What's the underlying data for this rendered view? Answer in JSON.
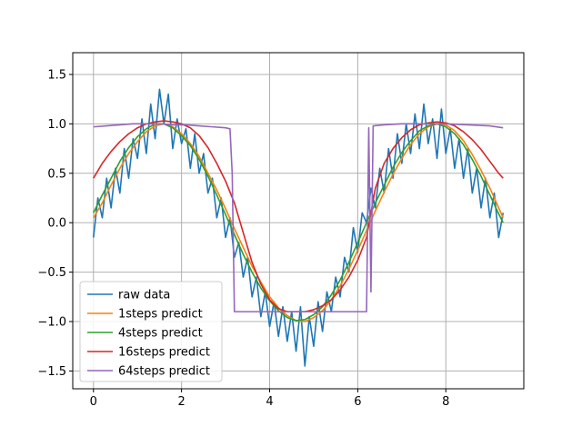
{
  "chart_data": {
    "type": "line",
    "title": "",
    "xlabel": "",
    "ylabel": "",
    "xlim": [
      -0.47,
      9.77
    ],
    "ylim": [
      -1.68,
      1.72
    ],
    "xticks": [
      0,
      2,
      4,
      6,
      8
    ],
    "yticks": [
      -1.5,
      -1.0,
      -0.5,
      0.0,
      0.5,
      1.0,
      1.5
    ],
    "xtick_labels": [
      "0",
      "2",
      "4",
      "6",
      "8"
    ],
    "ytick_labels": [
      "−1.5",
      "−1.0",
      "−0.5",
      "0.0",
      "0.5",
      "1.0",
      "1.5"
    ],
    "grid": true,
    "legend_position": "lower-left",
    "series": [
      {
        "name": "raw data",
        "color": "#1f77b4",
        "x": [
          0.0,
          0.1,
          0.2,
          0.3,
          0.4,
          0.5,
          0.6,
          0.7,
          0.8,
          0.9,
          1.0,
          1.1,
          1.2,
          1.3,
          1.4,
          1.5,
          1.6,
          1.7,
          1.8,
          1.9,
          2.0,
          2.1,
          2.2,
          2.3,
          2.4,
          2.5,
          2.6,
          2.7,
          2.8,
          2.9,
          3.0,
          3.1,
          3.2,
          3.3,
          3.4,
          3.5,
          3.6,
          3.7,
          3.8,
          3.9,
          4.0,
          4.1,
          4.2,
          4.3,
          4.4,
          4.5,
          4.6,
          4.7,
          4.8,
          4.9,
          5.0,
          5.1,
          5.2,
          5.3,
          5.4,
          5.5,
          5.6,
          5.7,
          5.8,
          5.9,
          6.0,
          6.1,
          6.2,
          6.3,
          6.4,
          6.5,
          6.6,
          6.7,
          6.8,
          6.9,
          7.0,
          7.1,
          7.2,
          7.3,
          7.4,
          7.5,
          7.6,
          7.7,
          7.8,
          7.9,
          8.0,
          8.1,
          8.2,
          8.3,
          8.4,
          8.5,
          8.6,
          8.7,
          8.8,
          8.9,
          9.0,
          9.1,
          9.2,
          9.3
        ],
        "y": [
          -0.15,
          0.25,
          0.05,
          0.45,
          0.15,
          0.55,
          0.3,
          0.75,
          0.45,
          0.85,
          0.65,
          1.05,
          0.7,
          1.2,
          0.85,
          1.35,
          1.0,
          1.3,
          0.75,
          1.05,
          0.8,
          0.95,
          0.55,
          0.9,
          0.5,
          0.7,
          0.3,
          0.45,
          0.05,
          0.25,
          -0.15,
          0.05,
          -0.35,
          -0.2,
          -0.55,
          -0.35,
          -0.75,
          -0.55,
          -0.95,
          -0.7,
          -1.05,
          -0.8,
          -1.15,
          -0.85,
          -1.2,
          -0.9,
          -1.3,
          -0.85,
          -1.45,
          -0.95,
          -1.25,
          -0.8,
          -1.1,
          -0.7,
          -0.9,
          -0.55,
          -0.75,
          -0.35,
          -0.5,
          -0.05,
          -0.3,
          0.1,
          0.0,
          0.35,
          0.15,
          0.55,
          0.3,
          0.75,
          0.45,
          0.9,
          0.6,
          1.0,
          0.7,
          1.1,
          0.75,
          1.2,
          0.8,
          1.05,
          0.65,
          1.15,
          0.7,
          0.95,
          0.55,
          0.85,
          0.45,
          0.75,
          0.3,
          0.55,
          0.15,
          0.45,
          0.05,
          0.3,
          -0.15,
          0.1
        ]
      },
      {
        "name": "1steps predict",
        "color": "#ff7f0e",
        "x": [
          0.0,
          0.2,
          0.4,
          0.6,
          0.8,
          1.0,
          1.2,
          1.4,
          1.6,
          1.8,
          2.0,
          2.2,
          2.4,
          2.6,
          2.8,
          3.0,
          3.2,
          3.4,
          3.6,
          3.8,
          4.0,
          4.2,
          4.4,
          4.6,
          4.8,
          5.0,
          5.2,
          5.4,
          5.6,
          5.8,
          6.0,
          6.2,
          6.4,
          6.6,
          6.8,
          7.0,
          7.2,
          7.4,
          7.6,
          7.8,
          8.0,
          8.2,
          8.4,
          8.6,
          8.8,
          9.0,
          9.2,
          9.3
        ],
        "y": [
          0.05,
          0.2,
          0.38,
          0.55,
          0.7,
          0.82,
          0.92,
          0.98,
          1.0,
          0.97,
          0.9,
          0.8,
          0.67,
          0.5,
          0.33,
          0.14,
          -0.06,
          -0.25,
          -0.44,
          -0.6,
          -0.75,
          -0.86,
          -0.94,
          -0.99,
          -1.0,
          -0.96,
          -0.89,
          -0.78,
          -0.64,
          -0.47,
          -0.28,
          -0.08,
          0.12,
          0.31,
          0.49,
          0.65,
          0.79,
          0.9,
          0.97,
          1.0,
          0.99,
          0.93,
          0.83,
          0.69,
          0.53,
          0.35,
          0.15,
          0.05
        ]
      },
      {
        "name": "4steps predict",
        "color": "#2ca02c",
        "x": [
          0.0,
          0.2,
          0.4,
          0.6,
          0.8,
          1.0,
          1.2,
          1.4,
          1.6,
          1.8,
          2.0,
          2.2,
          2.4,
          2.6,
          2.8,
          3.0,
          3.2,
          3.4,
          3.6,
          3.8,
          4.0,
          4.2,
          4.4,
          4.6,
          4.8,
          5.0,
          5.2,
          5.4,
          5.6,
          5.8,
          6.0,
          6.2,
          6.4,
          6.6,
          6.8,
          7.0,
          7.2,
          7.4,
          7.6,
          7.8,
          8.0,
          8.2,
          8.4,
          8.6,
          8.8,
          9.0,
          9.2,
          9.3
        ],
        "y": [
          0.1,
          0.28,
          0.45,
          0.62,
          0.76,
          0.87,
          0.95,
          1.0,
          1.0,
          0.96,
          0.88,
          0.78,
          0.64,
          0.47,
          0.28,
          0.08,
          -0.12,
          -0.32,
          -0.5,
          -0.66,
          -0.79,
          -0.89,
          -0.96,
          -0.99,
          -0.98,
          -0.93,
          -0.85,
          -0.73,
          -0.58,
          -0.4,
          -0.2,
          0.0,
          0.2,
          0.38,
          0.56,
          0.71,
          0.83,
          0.93,
          0.98,
          1.0,
          0.97,
          0.9,
          0.79,
          0.64,
          0.47,
          0.28,
          0.09,
          0.0
        ]
      },
      {
        "name": "16steps predict",
        "color": "#d62728",
        "x": [
          0.0,
          0.2,
          0.4,
          0.6,
          0.8,
          1.0,
          1.2,
          1.4,
          1.6,
          1.8,
          2.0,
          2.2,
          2.4,
          2.6,
          2.8,
          3.0,
          3.2,
          3.4,
          3.6,
          3.8,
          4.0,
          4.2,
          4.4,
          4.6,
          4.8,
          5.0,
          5.2,
          5.4,
          5.6,
          5.8,
          6.0,
          6.2,
          6.4,
          6.6,
          6.8,
          7.0,
          7.2,
          7.4,
          7.6,
          7.8,
          8.0,
          8.2,
          8.4,
          8.6,
          8.8,
          9.0,
          9.2,
          9.3
        ],
        "y": [
          0.45,
          0.6,
          0.72,
          0.82,
          0.9,
          0.96,
          1.0,
          1.02,
          1.03,
          1.02,
          1.0,
          0.96,
          0.88,
          0.76,
          0.6,
          0.42,
          0.2,
          -0.1,
          -0.4,
          -0.62,
          -0.78,
          -0.87,
          -0.9,
          -0.9,
          -0.9,
          -0.88,
          -0.84,
          -0.78,
          -0.68,
          -0.55,
          -0.38,
          -0.15,
          0.35,
          0.6,
          0.75,
          0.86,
          0.94,
          0.99,
          1.01,
          1.02,
          1.01,
          0.98,
          0.92,
          0.84,
          0.74,
          0.62,
          0.5,
          0.45
        ]
      },
      {
        "name": "64steps predict",
        "color": "#9467bd",
        "x": [
          0.0,
          0.3,
          0.6,
          0.9,
          1.2,
          1.5,
          1.8,
          2.1,
          2.4,
          2.7,
          3.0,
          3.1,
          3.15,
          3.2,
          3.5,
          4.0,
          4.5,
          5.0,
          5.5,
          6.0,
          6.2,
          6.25,
          6.3,
          6.35,
          6.6,
          7.0,
          7.5,
          8.0,
          8.5,
          9.0,
          9.3
        ],
        "y": [
          0.97,
          0.98,
          0.99,
          1.0,
          1.0,
          1.0,
          0.99,
          0.99,
          0.98,
          0.97,
          0.96,
          0.95,
          0.5,
          -0.9,
          -0.9,
          -0.9,
          -0.9,
          -0.9,
          -0.9,
          -0.9,
          -0.9,
          0.96,
          -0.7,
          0.98,
          0.99,
          1.0,
          1.0,
          1.0,
          0.99,
          0.98,
          0.96
        ]
      }
    ]
  }
}
